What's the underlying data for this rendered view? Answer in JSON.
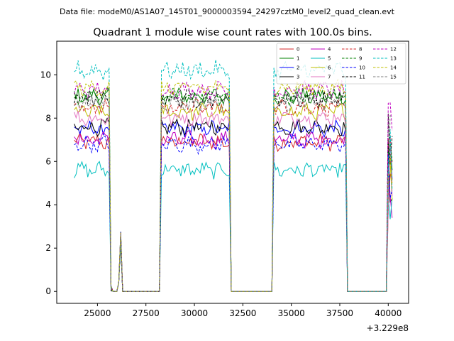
{
  "suptitle": "Data file: modeM0/AS1A07_145T01_9000003594_24297cztM0_level2_quad_clean.evt",
  "chart_data": {
    "type": "line",
    "title": "Quadrant 1 module wise count rates with 100.0s bins.",
    "xlabel": "",
    "ylabel": "",
    "x_offset_label": "+3.229e8",
    "xlim": [
      22900,
      41050
    ],
    "ylim": [
      -0.55,
      11.55
    ],
    "xticks": [
      25000,
      27500,
      30000,
      32500,
      35000,
      37500,
      40000
    ],
    "xtick_labels": [
      "25000",
      "27500",
      "30000",
      "32500",
      "35000",
      "37500",
      "40000"
    ],
    "yticks": [
      0,
      2,
      4,
      6,
      8,
      10
    ],
    "ytick_labels": [
      "0",
      "2",
      "4",
      "6",
      "8",
      "10"
    ],
    "legend_position": "top-right",
    "segments": [
      [
        23800,
        25600
      ],
      [
        28300,
        31800
      ],
      [
        34100,
        37800
      ],
      [
        40000,
        40200
      ]
    ],
    "series": [
      {
        "name": "0",
        "color": "#d62728",
        "style": "solid",
        "level": 6.9
      },
      {
        "name": "1",
        "color": "#008000",
        "style": "solid",
        "level": 9.0
      },
      {
        "name": "2",
        "color": "#0000ff",
        "style": "solid",
        "level": 7.5
      },
      {
        "name": "3",
        "color": "#000000",
        "style": "solid",
        "level": 7.6
      },
      {
        "name": "4",
        "color": "#c000c0",
        "style": "solid",
        "level": 7.0
      },
      {
        "name": "5",
        "color": "#00bfbf",
        "style": "solid",
        "level": 5.6
      },
      {
        "name": "6",
        "color": "#bfbf00",
        "style": "solid",
        "level": 8.3
      },
      {
        "name": "7",
        "color": "#e377c2",
        "style": "solid",
        "level": 8.0
      },
      {
        "name": "8",
        "color": "#d62728",
        "style": "dashed",
        "level": 8.5
      },
      {
        "name": "9",
        "color": "#008000",
        "style": "dashed",
        "level": 9.0
      },
      {
        "name": "10",
        "color": "#0000ff",
        "style": "dashed",
        "level": 6.8
      },
      {
        "name": "11",
        "color": "#000000",
        "style": "dashed",
        "level": 8.9
      },
      {
        "name": "12",
        "color": "#c000c0",
        "style": "dashed",
        "level": 9.3
      },
      {
        "name": "13",
        "color": "#00bfbf",
        "style": "dashed",
        "level": 10.2
      },
      {
        "name": "14",
        "color": "#bfbf00",
        "style": "dashed",
        "level": 9.4
      },
      {
        "name": "15",
        "color": "#7f7f7f",
        "style": "dashed",
        "level": 8.7
      }
    ]
  }
}
